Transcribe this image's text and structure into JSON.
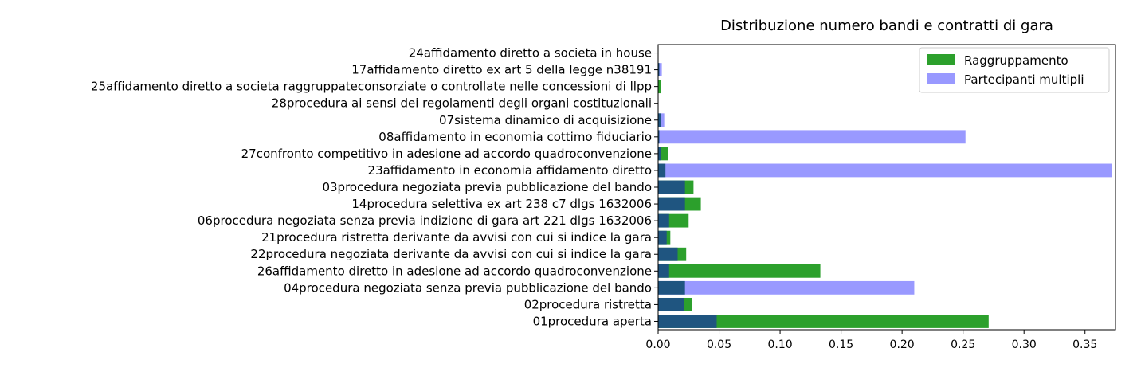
{
  "chart_data": {
    "type": "bar",
    "orientation": "horizontal",
    "title": "Distribuzione numero bandi e contratti di gara",
    "xlabel": "",
    "ylabel": "",
    "xlim": [
      0,
      0.375
    ],
    "x_ticks": [
      "0.00",
      "0.05",
      "0.10",
      "0.15",
      "0.20",
      "0.25",
      "0.30",
      "0.35"
    ],
    "x_tick_values": [
      0,
      0.05,
      0.1,
      0.15,
      0.2,
      0.25,
      0.3,
      0.35
    ],
    "grid": false,
    "legend_position": "top-right",
    "categories": [
      "01procedura aperta",
      "02procedura ristretta",
      "04procedura negoziata senza previa pubblicazione del bando",
      "26affidamento diretto in adesione ad accordo quadroconvenzione",
      "22procedura negoziata derivante da avvisi con cui si indice la gara",
      "21procedura ristretta derivante da avvisi con cui si indice la gara",
      "06procedura negoziata senza previa indizione di  gara art 221 dlgs 1632006",
      "14procedura selettiva ex art 238 c7 dlgs 1632006",
      "03procedura negoziata previa pubblicazione del bando",
      "23affidamento in economia  affidamento diretto",
      "27confronto competitivo in adesione ad accordo quadroconvenzione",
      "08affidamento in economia  cottimo fiduciario",
      "07sistema dinamico di acquisizione",
      "28procedura ai sensi dei regolamenti degli organi costituzionali",
      "25affidamento diretto a societa raggruppateconsorziate o controllate nelle concessioni di llpp",
      "17affidamento diretto ex art 5 della legge n38191",
      "24affidamento diretto a societa in house"
    ],
    "series": [
      {
        "name": "Raggruppamento",
        "color": "#2ca02c",
        "values": [
          0.271,
          0.028,
          0.022,
          0.133,
          0.023,
          0.01,
          0.025,
          0.035,
          0.029,
          0.006,
          0.008,
          0.001,
          0.002,
          0.0,
          0.002,
          0.001,
          0.0
        ]
      },
      {
        "name": "Partecipanti multipli",
        "color": "#9999ff",
        "values": [
          0.048,
          0.021,
          0.21,
          0.009,
          0.016,
          0.007,
          0.009,
          0.022,
          0.022,
          0.372,
          0.002,
          0.252,
          0.005,
          0.0,
          0.0,
          0.003,
          0.0
        ]
      }
    ],
    "overlap_color": "#1f5580"
  }
}
